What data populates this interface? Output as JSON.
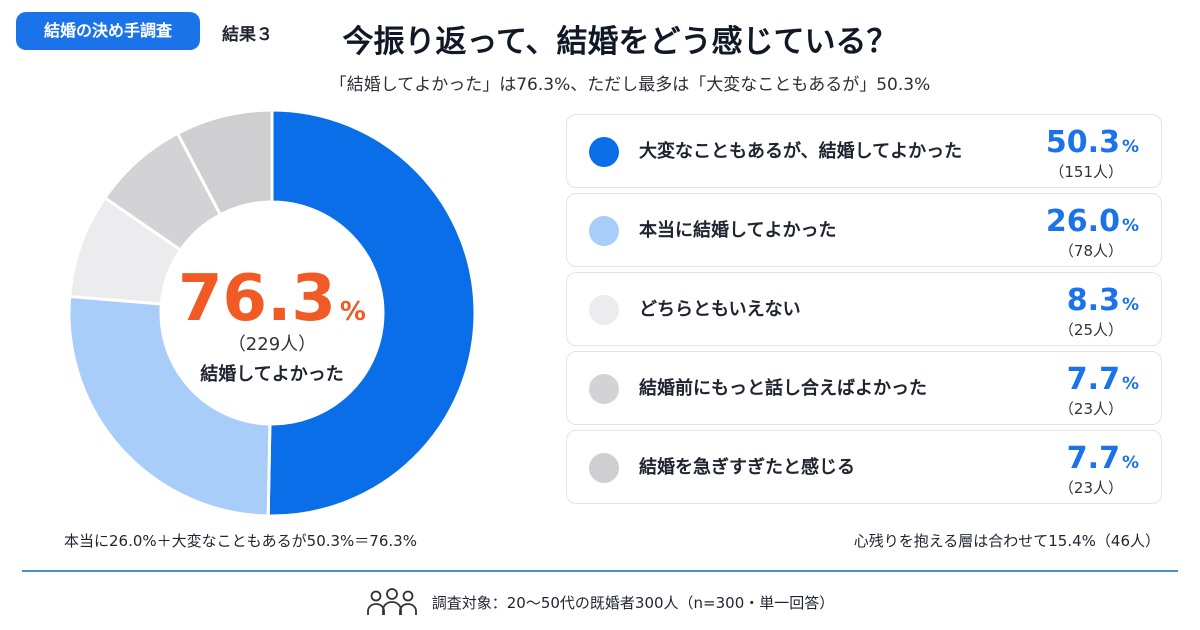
{
  "header": {
    "tag": "結婚の決め手調査",
    "result_label": "結果３",
    "title": "今振り返って、結婚をどう感じている？",
    "subtitle": "「結婚してよかった」は76.3%、ただし最多は「大変なこともあるが」50.3%"
  },
  "center": {
    "value": "76.3",
    "unit": "%",
    "count": "（229人）",
    "label": "結婚してよかった"
  },
  "notes": {
    "left": "本当に26.0%＋大変なこともあるが50.3%＝76.3%",
    "right": "心残りを抱える層は合わせて15.4%（46人）"
  },
  "legend": [
    {
      "label": "大変なこともあるが、結婚してよかった",
      "value": "50.3",
      "unit": "%",
      "count": "（151人）",
      "color": "#0a6ee8"
    },
    {
      "label": "本当に結婚してよかった",
      "value": "26.0",
      "unit": "%",
      "count": "（78人）",
      "color": "#a8cdf8"
    },
    {
      "label": "どちらともいえない",
      "value": "8.3",
      "unit": "%",
      "count": "（25人）",
      "color": "#ececef"
    },
    {
      "label": "結婚前にもっと話し合えばよかった",
      "value": "7.7",
      "unit": "%",
      "count": "（23人）",
      "color": "#d3d3d6"
    },
    {
      "label": "結婚を急ぎすぎたと感じる",
      "value": "7.7",
      "unit": "%",
      "count": "（23人）",
      "color": "#cfcfd2"
    }
  ],
  "footer": {
    "icon": "people-group-icon",
    "text": "調査対象：20〜50代の既婚者300人（n=300・単一回答）"
  },
  "chart_data": {
    "type": "pie",
    "categories": [
      "大変なこともあるが、結婚してよかった",
      "本当に結婚してよかった",
      "どちらともいえない",
      "結婚前にもっと話し合えばよかった",
      "結婚を急ぎすぎたと感じる"
    ],
    "values": [
      50.3,
      26.0,
      8.3,
      7.7,
      7.7
    ],
    "counts": [
      151,
      78,
      25,
      23,
      23
    ],
    "colors": [
      "#0a6ee8",
      "#a8cdf8",
      "#ececef",
      "#d3d3d6",
      "#cfcfd2"
    ],
    "donut": true,
    "start_angle": "top",
    "direction": "clockwise",
    "legend": "right"
  }
}
